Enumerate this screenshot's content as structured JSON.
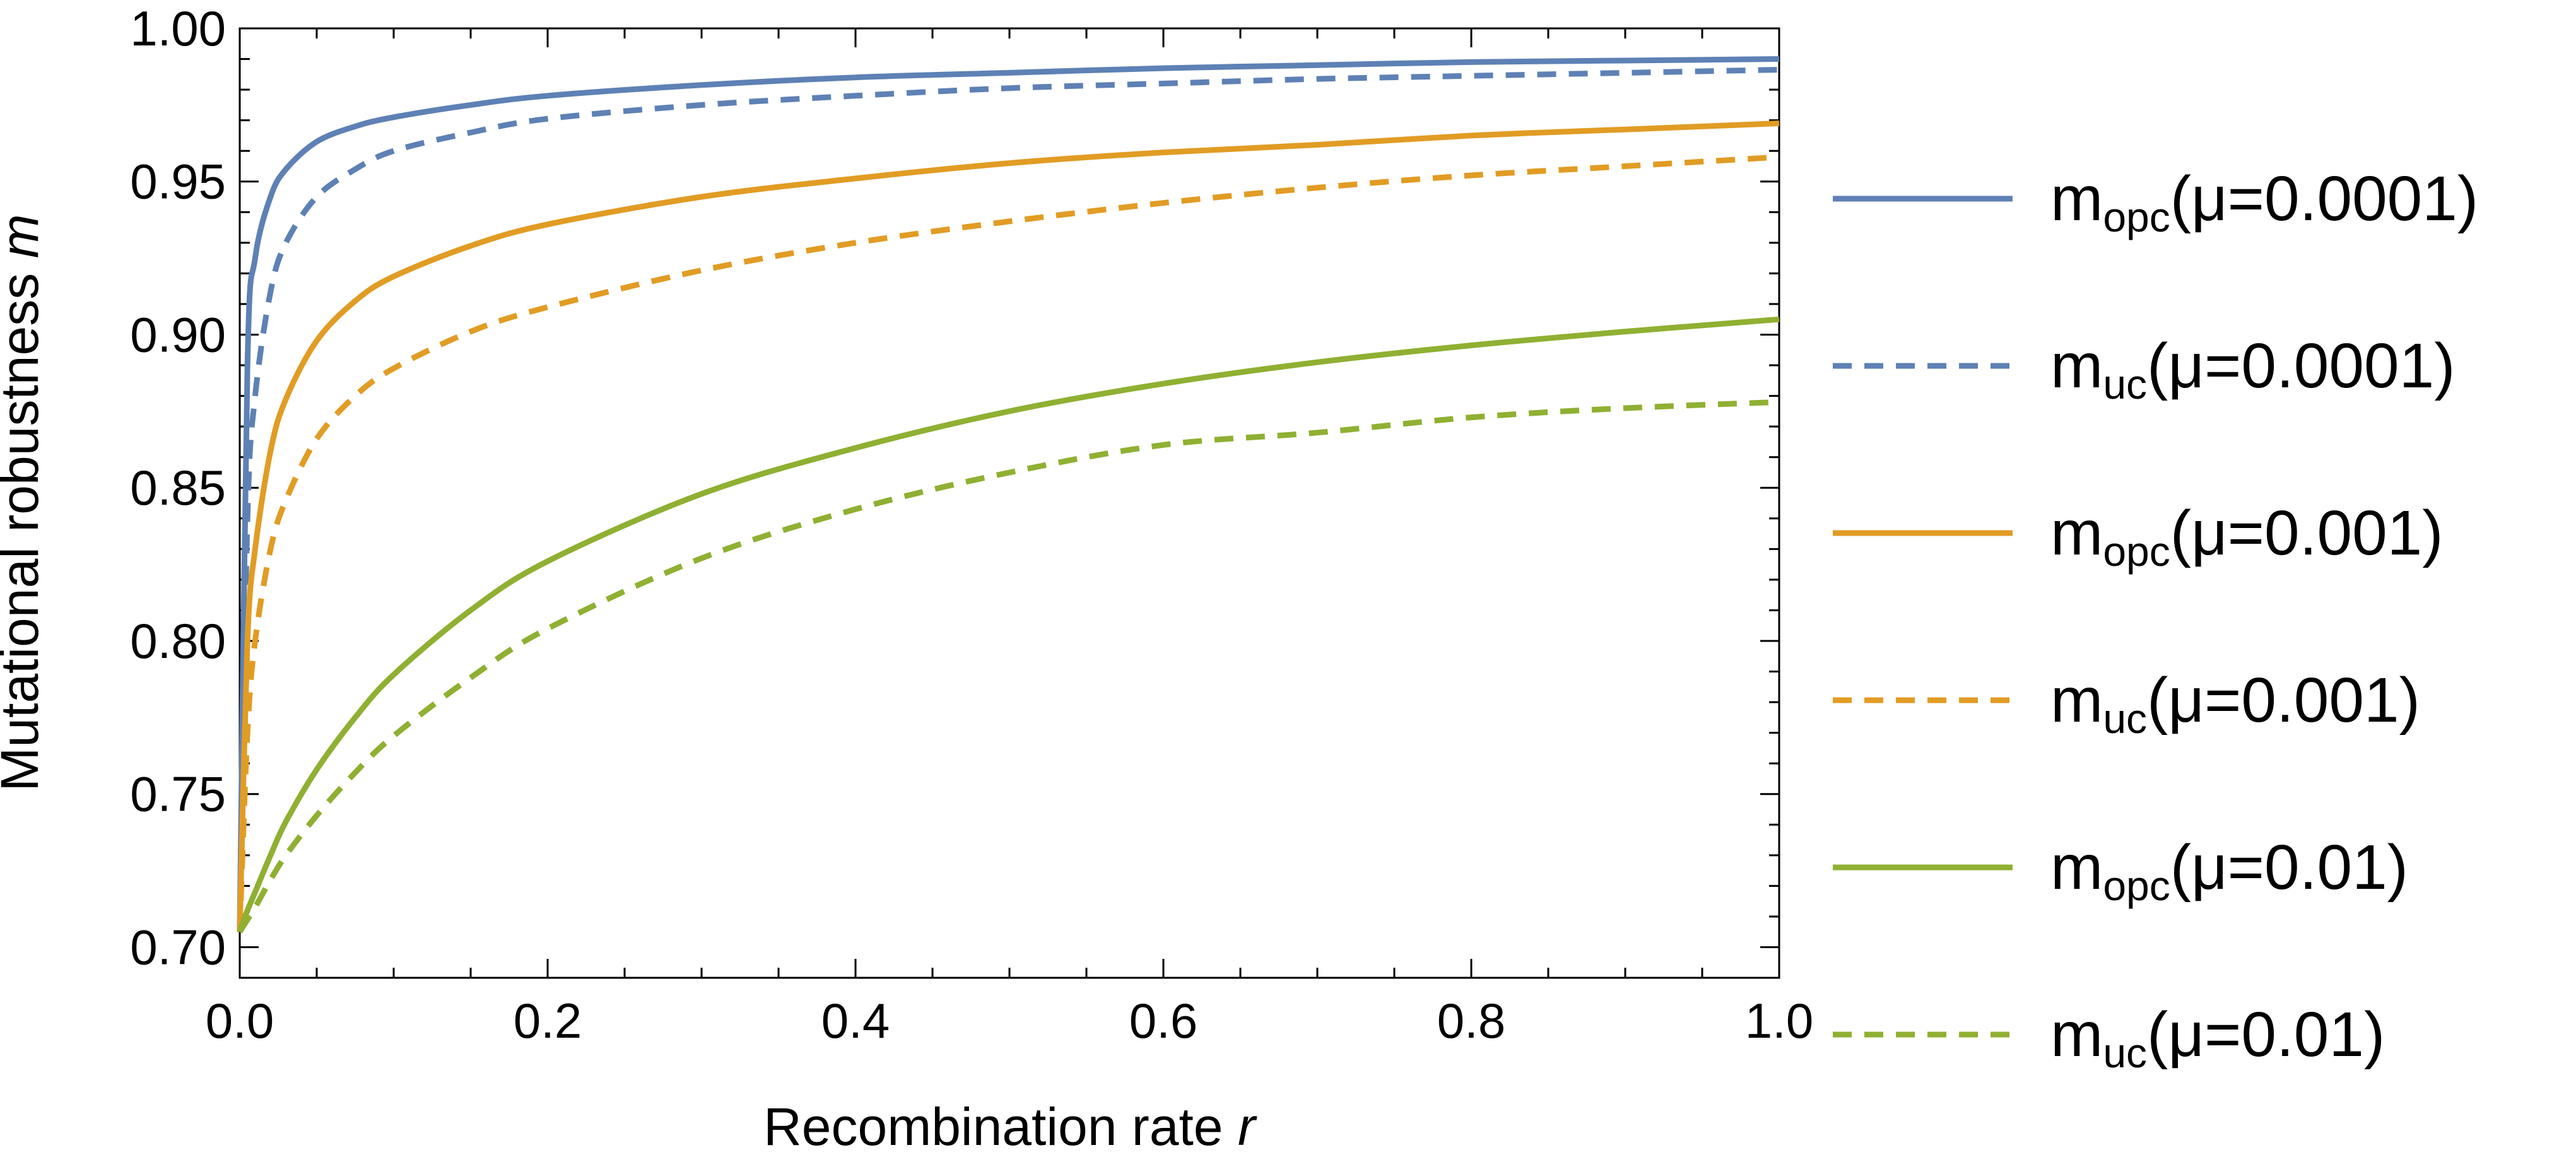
{
  "chart_data": {
    "type": "line",
    "title": "",
    "xlabel": "Recombination rate",
    "xlabel_var": "r",
    "ylabel": "Mutational robustness",
    "ylabel_var": "m",
    "xlim": [
      0.0,
      1.0
    ],
    "ylim": [
      0.69,
      1.0
    ],
    "x_ticks": [
      "0.0",
      "0.2",
      "0.4",
      "0.6",
      "0.8",
      "1.0"
    ],
    "y_ticks": [
      "0.70",
      "0.75",
      "0.80",
      "0.85",
      "0.90",
      "0.95",
      "1.00"
    ],
    "legend_position": "right",
    "x": [
      0.0,
      0.005,
      0.01,
      0.02,
      0.03,
      0.05,
      0.075,
      0.1,
      0.15,
      0.2,
      0.3,
      0.4,
      0.5,
      0.6,
      0.7,
      0.8,
      0.9,
      1.0
    ],
    "series": [
      {
        "name": "m_opc(μ=0.0001)",
        "base": "m",
        "sub": "opc",
        "rest": "(μ=0.0001)",
        "color": "#5E81B5",
        "dash": "solid",
        "values": [
          0.705,
          0.89,
          0.925,
          0.945,
          0.954,
          0.963,
          0.968,
          0.971,
          0.975,
          0.978,
          0.9815,
          0.984,
          0.9855,
          0.987,
          0.988,
          0.989,
          0.9895,
          0.99
        ]
      },
      {
        "name": "m_uc(μ=0.0001)",
        "base": "m",
        "sub": "uc",
        "rest": "(μ=0.0001)",
        "color": "#5E81B5",
        "dash": "dashed",
        "values": [
          0.705,
          0.84,
          0.88,
          0.914,
          0.93,
          0.945,
          0.954,
          0.96,
          0.966,
          0.9705,
          0.975,
          0.978,
          0.9805,
          0.982,
          0.9835,
          0.9845,
          0.9855,
          0.9865
        ]
      },
      {
        "name": "m_opc(μ=0.001)",
        "base": "m",
        "sub": "opc",
        "rest": "(μ=0.001)",
        "color": "#E19C24",
        "dash": "solid",
        "values": [
          0.705,
          0.8,
          0.83,
          0.862,
          0.879,
          0.898,
          0.911,
          0.919,
          0.929,
          0.936,
          0.945,
          0.951,
          0.956,
          0.9595,
          0.962,
          0.965,
          0.967,
          0.969
        ]
      },
      {
        "name": "m_uc(μ=0.001)",
        "base": "m",
        "sub": "uc",
        "rest": "(μ=0.001)",
        "color": "#E19C24",
        "dash": "dashed",
        "values": [
          0.705,
          0.77,
          0.8,
          0.83,
          0.846,
          0.866,
          0.88,
          0.889,
          0.901,
          0.909,
          0.921,
          0.93,
          0.937,
          0.943,
          0.948,
          0.952,
          0.955,
          0.958
        ]
      },
      {
        "name": "m_opc(μ=0.01)",
        "base": "m",
        "sub": "opc",
        "rest": "(μ=0.01)",
        "color": "#8FB032",
        "dash": "solid",
        "values": [
          0.705,
          0.712,
          0.718,
          0.73,
          0.741,
          0.758,
          0.775,
          0.789,
          0.81,
          0.826,
          0.848,
          0.863,
          0.875,
          0.884,
          0.891,
          0.8965,
          0.901,
          0.905
        ]
      },
      {
        "name": "m_uc(μ=0.01)",
        "base": "m",
        "sub": "uc",
        "rest": "(μ=0.01)",
        "color": "#8FB032",
        "dash": "dashed",
        "values": [
          0.705,
          0.709,
          0.713,
          0.722,
          0.73,
          0.743,
          0.757,
          0.769,
          0.788,
          0.804,
          0.827,
          0.843,
          0.855,
          0.864,
          0.868,
          0.873,
          0.876,
          0.878
        ]
      }
    ]
  }
}
